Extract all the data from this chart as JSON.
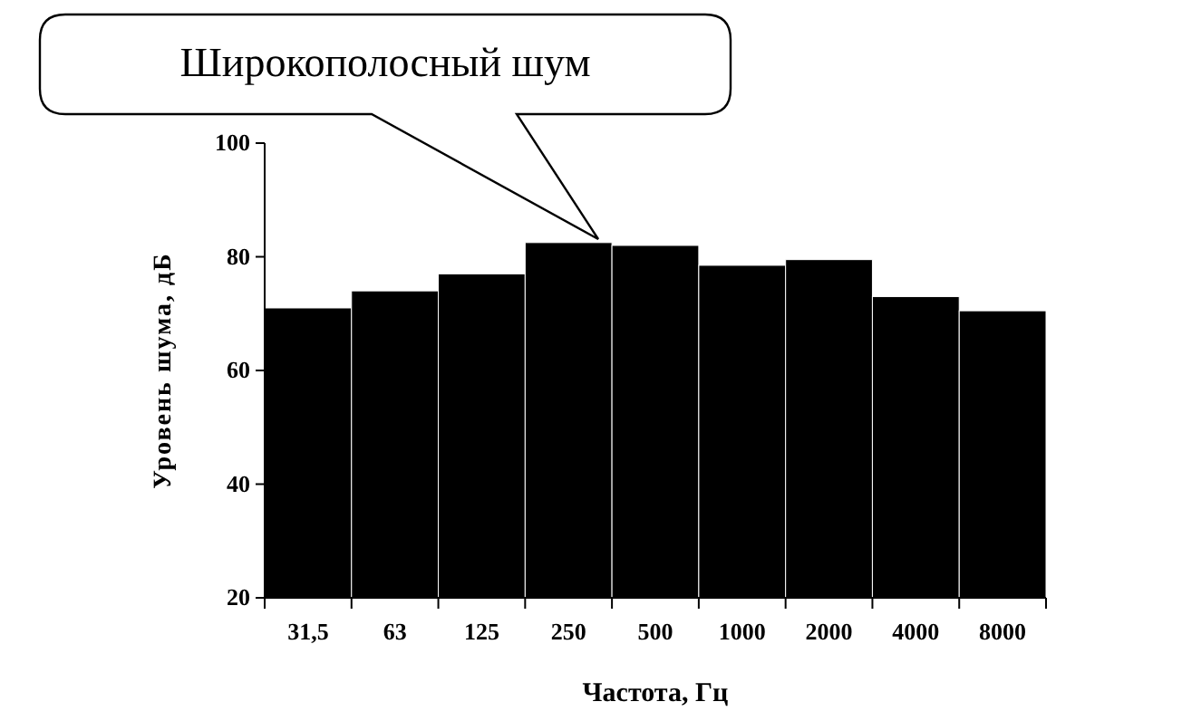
{
  "chart_data": {
    "type": "bar",
    "xlabel": "Частота, Гц",
    "ylabel": "Уровень шума, дБ",
    "categories": [
      "31,5",
      "63",
      "125",
      "250",
      "500",
      "1000",
      "2000",
      "4000",
      "8000"
    ],
    "values": [
      71,
      74,
      77,
      82.5,
      82,
      78.5,
      79.5,
      73,
      70.5
    ],
    "color": "#000000",
    "ylim": [
      20,
      100
    ],
    "yticks": [
      20,
      40,
      60,
      80,
      100
    ],
    "annotations": [
      "Широкополосный шум"
    ]
  }
}
